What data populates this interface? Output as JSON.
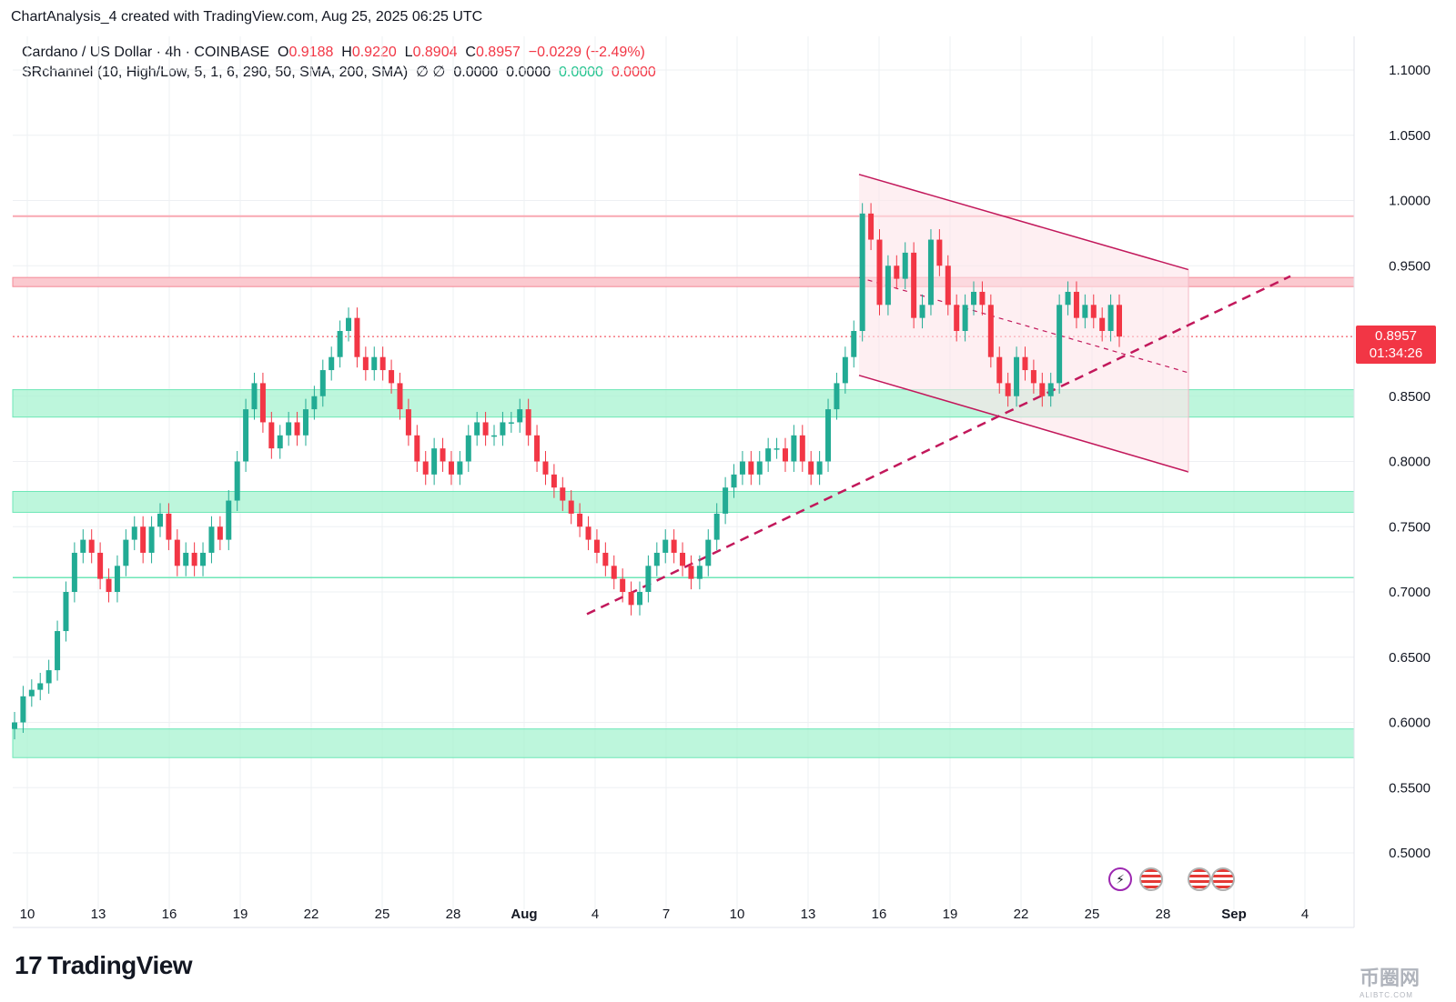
{
  "header": {
    "text": "ChartAnalysis_4 created with TradingView.com, Aug 25, 2025 06:25 UTC"
  },
  "legend": {
    "symbol": "Cardano / US Dollar · 4h · COINBASE",
    "o_label": "O",
    "o_value": "0.9188",
    "h_label": "H",
    "h_value": "0.9220",
    "l_label": "L",
    "l_value": "0.8904",
    "c_label": "C",
    "c_value": "0.8957",
    "change": "−0.0229 (−2.49%)",
    "indicator": "SRchannel (10, High/Low, 5, 1, 6, 290, 50, SMA, 200, SMA)",
    "indicator_icons": "∅ ∅",
    "ind_v1": "0.0000",
    "ind_v2": "0.0000",
    "ind_v3": "0.0000",
    "ind_v4": "0.0000"
  },
  "price_badge": {
    "price": "0.8957",
    "countdown": "01:34:26"
  },
  "brand": {
    "logo_text": "TradingView",
    "watermark": "币圈网",
    "watermark_sub": "ALIBTC.COM"
  },
  "colors": {
    "up": "#22ab94",
    "down": "#f23645",
    "support": "#a7f3d0",
    "resistance": "#fbc9cf",
    "trend": "#c2185b"
  },
  "chart_data": {
    "type": "candlestick",
    "y_ticks": [
      "1.1000",
      "1.0500",
      "1.0000",
      "0.9500",
      "0.8500",
      "0.8000",
      "0.7500",
      "0.7000",
      "0.6500",
      "0.6000",
      "0.5500",
      "0.5000"
    ],
    "ylim": [
      0.47,
      1.12
    ],
    "x_ticks": [
      "10",
      "13",
      "16",
      "19",
      "22",
      "25",
      "28",
      "Aug",
      "4",
      "7",
      "10",
      "13",
      "16",
      "19",
      "22",
      "25",
      "28",
      "Sep",
      "4"
    ],
    "support_zones": [
      [
        0.834,
        0.855
      ],
      [
        0.761,
        0.777
      ],
      [
        0.573,
        0.595
      ]
    ],
    "resistance_zones": [
      [
        0.934,
        0.941
      ]
    ],
    "resistance_lines": [
      0.988
    ],
    "support_lines": [
      0.711
    ],
    "current_price": 0.8957,
    "closes": [
      0.6,
      0.62,
      0.625,
      0.63,
      0.64,
      0.67,
      0.7,
      0.73,
      0.74,
      0.73,
      0.71,
      0.7,
      0.72,
      0.74,
      0.75,
      0.73,
      0.75,
      0.76,
      0.74,
      0.72,
      0.73,
      0.72,
      0.73,
      0.75,
      0.74,
      0.77,
      0.8,
      0.84,
      0.86,
      0.83,
      0.81,
      0.82,
      0.83,
      0.82,
      0.84,
      0.85,
      0.87,
      0.88,
      0.9,
      0.91,
      0.88,
      0.87,
      0.88,
      0.87,
      0.86,
      0.84,
      0.82,
      0.8,
      0.79,
      0.81,
      0.8,
      0.79,
      0.8,
      0.82,
      0.83,
      0.82,
      0.82,
      0.83,
      0.83,
      0.84,
      0.82,
      0.8,
      0.79,
      0.78,
      0.77,
      0.76,
      0.75,
      0.74,
      0.73,
      0.72,
      0.71,
      0.7,
      0.69,
      0.7,
      0.72,
      0.73,
      0.74,
      0.73,
      0.72,
      0.71,
      0.72,
      0.74,
      0.76,
      0.78,
      0.79,
      0.8,
      0.79,
      0.8,
      0.81,
      0.81,
      0.8,
      0.82,
      0.8,
      0.79,
      0.8,
      0.84,
      0.86,
      0.88,
      0.9,
      0.99,
      0.97,
      0.92,
      0.95,
      0.94,
      0.96,
      0.91,
      0.92,
      0.97,
      0.95,
      0.92,
      0.9,
      0.92,
      0.93,
      0.92,
      0.88,
      0.86,
      0.85,
      0.88,
      0.87,
      0.86,
      0.85,
      0.86,
      0.92,
      0.93,
      0.91,
      0.92,
      0.91,
      0.9,
      0.92,
      0.8957
    ]
  }
}
